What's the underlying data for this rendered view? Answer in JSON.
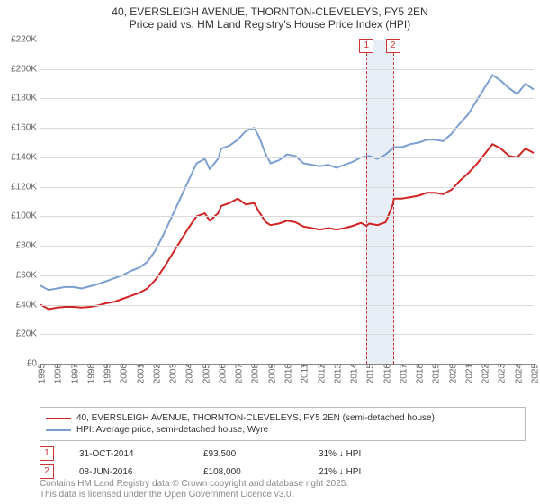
{
  "title": {
    "line1": "40, EVERSLEIGH AVENUE, THORNTON-CLEVELEYS, FY5 2EN",
    "line2": "Price paid vs. HM Land Registry's House Price Index (HPI)"
  },
  "chart": {
    "type": "line",
    "background_color": "#ffffff",
    "grid_color": "#d9d9d9",
    "axis_color": "#888888",
    "tick_fontsize": 10,
    "tick_color": "#666666",
    "x": {
      "min": 1995,
      "max": 2025,
      "ticks": [
        1995,
        1996,
        1997,
        1998,
        1999,
        2000,
        2001,
        2002,
        2003,
        2004,
        2005,
        2006,
        2007,
        2008,
        2009,
        2010,
        2011,
        2012,
        2013,
        2014,
        2015,
        2016,
        2017,
        2018,
        2019,
        2020,
        2021,
        2022,
        2023,
        2024,
        2025
      ]
    },
    "y": {
      "min": 0,
      "max": 220000,
      "ticks": [
        0,
        20000,
        40000,
        60000,
        80000,
        100000,
        120000,
        140000,
        160000,
        180000,
        200000,
        220000
      ],
      "tick_labels": [
        "£0",
        "£20K",
        "£40K",
        "£60K",
        "£80K",
        "£100K",
        "£120K",
        "£140K",
        "£160K",
        "£180K",
        "£200K",
        "£220K"
      ]
    },
    "highlight": {
      "from": 2014.83,
      "to": 2016.44,
      "fill": "#e6ecf5"
    },
    "series": [
      {
        "id": "hpi",
        "label": "HPI: Average price, semi-detached house, Wyre",
        "color": "#7b9fd1",
        "width": 2,
        "points": [
          [
            1995,
            53000
          ],
          [
            1995.5,
            50000
          ],
          [
            1996,
            51000
          ],
          [
            1996.5,
            52000
          ],
          [
            1997,
            52000
          ],
          [
            1997.5,
            51000
          ],
          [
            1998,
            52500
          ],
          [
            1998.5,
            54000
          ],
          [
            1999,
            56000
          ],
          [
            1999.5,
            58000
          ],
          [
            2000,
            60000
          ],
          [
            2000.5,
            63000
          ],
          [
            2001,
            65000
          ],
          [
            2001.5,
            69000
          ],
          [
            2002,
            77000
          ],
          [
            2002.5,
            88000
          ],
          [
            2003,
            100000
          ],
          [
            2003.5,
            112000
          ],
          [
            2004,
            124000
          ],
          [
            2004.5,
            136000
          ],
          [
            2005,
            139000
          ],
          [
            2005.3,
            132000
          ],
          [
            2005.8,
            139000
          ],
          [
            2006,
            146000
          ],
          [
            2006.5,
            148000
          ],
          [
            2007,
            152000
          ],
          [
            2007.5,
            158000
          ],
          [
            2008,
            160000
          ],
          [
            2008.3,
            154000
          ],
          [
            2008.7,
            142000
          ],
          [
            2009,
            136000
          ],
          [
            2009.5,
            138000
          ],
          [
            2010,
            142000
          ],
          [
            2010.5,
            141000
          ],
          [
            2011,
            136000
          ],
          [
            2011.5,
            135000
          ],
          [
            2012,
            134000
          ],
          [
            2012.5,
            135000
          ],
          [
            2013,
            133000
          ],
          [
            2013.5,
            135000
          ],
          [
            2014,
            137000
          ],
          [
            2014.5,
            140000
          ],
          [
            2015,
            141000
          ],
          [
            2015.5,
            139000
          ],
          [
            2016,
            142000
          ],
          [
            2016.5,
            147000
          ],
          [
            2017,
            147000
          ],
          [
            2017.5,
            149000
          ],
          [
            2018,
            150000
          ],
          [
            2018.5,
            152000
          ],
          [
            2019,
            152000
          ],
          [
            2019.5,
            151000
          ],
          [
            2020,
            156000
          ],
          [
            2020.5,
            163000
          ],
          [
            2021,
            169000
          ],
          [
            2021.5,
            178000
          ],
          [
            2022,
            187000
          ],
          [
            2022.5,
            196000
          ],
          [
            2023,
            192000
          ],
          [
            2023.5,
            187000
          ],
          [
            2024,
            183000
          ],
          [
            2024.5,
            190000
          ],
          [
            2025,
            186000
          ]
        ]
      },
      {
        "id": "price_paid",
        "label": "40, EVERSLEIGH AVENUE, THORNTON-CLEVELEYS, FY5 2EN (semi-detached house)",
        "color": "#d02323",
        "width": 2,
        "points": [
          [
            1995,
            40000
          ],
          [
            1995.5,
            37000
          ],
          [
            1996,
            38000
          ],
          [
            1996.5,
            38500
          ],
          [
            1997,
            38500
          ],
          [
            1997.5,
            38000
          ],
          [
            1998,
            38500
          ],
          [
            1998.5,
            39500
          ],
          [
            1999,
            41000
          ],
          [
            1999.5,
            42000
          ],
          [
            2000,
            44000
          ],
          [
            2000.5,
            46000
          ],
          [
            2001,
            48000
          ],
          [
            2001.5,
            51000
          ],
          [
            2002,
            57000
          ],
          [
            2002.5,
            65000
          ],
          [
            2003,
            74000
          ],
          [
            2003.5,
            83000
          ],
          [
            2004,
            92000
          ],
          [
            2004.5,
            100000
          ],
          [
            2005,
            102000
          ],
          [
            2005.3,
            97000
          ],
          [
            2005.8,
            102000
          ],
          [
            2006,
            107000
          ],
          [
            2006.5,
            109000
          ],
          [
            2007,
            112000
          ],
          [
            2007.5,
            108000
          ],
          [
            2008,
            109000
          ],
          [
            2008.3,
            103000
          ],
          [
            2008.7,
            96000
          ],
          [
            2009,
            94000
          ],
          [
            2009.5,
            95000
          ],
          [
            2010,
            97000
          ],
          [
            2010.5,
            96000
          ],
          [
            2011,
            93000
          ],
          [
            2011.5,
            92000
          ],
          [
            2012,
            91000
          ],
          [
            2012.5,
            92000
          ],
          [
            2013,
            91000
          ],
          [
            2013.5,
            92000
          ],
          [
            2014,
            93500
          ],
          [
            2014.5,
            95500
          ],
          [
            2014.83,
            93500
          ],
          [
            2015,
            95000
          ],
          [
            2015.5,
            94000
          ],
          [
            2016,
            96000
          ],
          [
            2016.44,
            108000
          ],
          [
            2016.5,
            112000
          ],
          [
            2017,
            112000
          ],
          [
            2017.5,
            113000
          ],
          [
            2018,
            114000
          ],
          [
            2018.5,
            116000
          ],
          [
            2019,
            116000
          ],
          [
            2019.5,
            115000
          ],
          [
            2020,
            118000
          ],
          [
            2020.5,
            124000
          ],
          [
            2021,
            129000
          ],
          [
            2021.5,
            135000
          ],
          [
            2022,
            142000
          ],
          [
            2022.5,
            149000
          ],
          [
            2023,
            146000
          ],
          [
            2023.5,
            141000
          ],
          [
            2024,
            140000
          ],
          [
            2024.5,
            146000
          ],
          [
            2025,
            143000
          ]
        ]
      }
    ],
    "event_lines": [
      {
        "x": 2014.83,
        "marker": "1",
        "color": "#cc3333"
      },
      {
        "x": 2016.44,
        "marker": "2",
        "color": "#cc3333"
      }
    ]
  },
  "legend": {
    "border_color": "#bbbbbb",
    "items": [
      {
        "color": "#d02323",
        "label": "40, EVERSLEIGH AVENUE, THORNTON-CLEVELEYS, FY5 2EN (semi-detached house)"
      },
      {
        "color": "#7b9fd1",
        "label": "HPI: Average price, semi-detached house, Wyre"
      }
    ]
  },
  "events_table": [
    {
      "marker": "1",
      "date": "31-OCT-2014",
      "price": "£93,500",
      "diff": "31% ↓ HPI"
    },
    {
      "marker": "2",
      "date": "08-JUN-2016",
      "price": "£108,000",
      "diff": "21% ↓ HPI"
    }
  ],
  "footnote": {
    "line1": "Contains HM Land Registry data © Crown copyright and database right 2025.",
    "line2": "This data is licensed under the Open Government Licence v3.0."
  }
}
